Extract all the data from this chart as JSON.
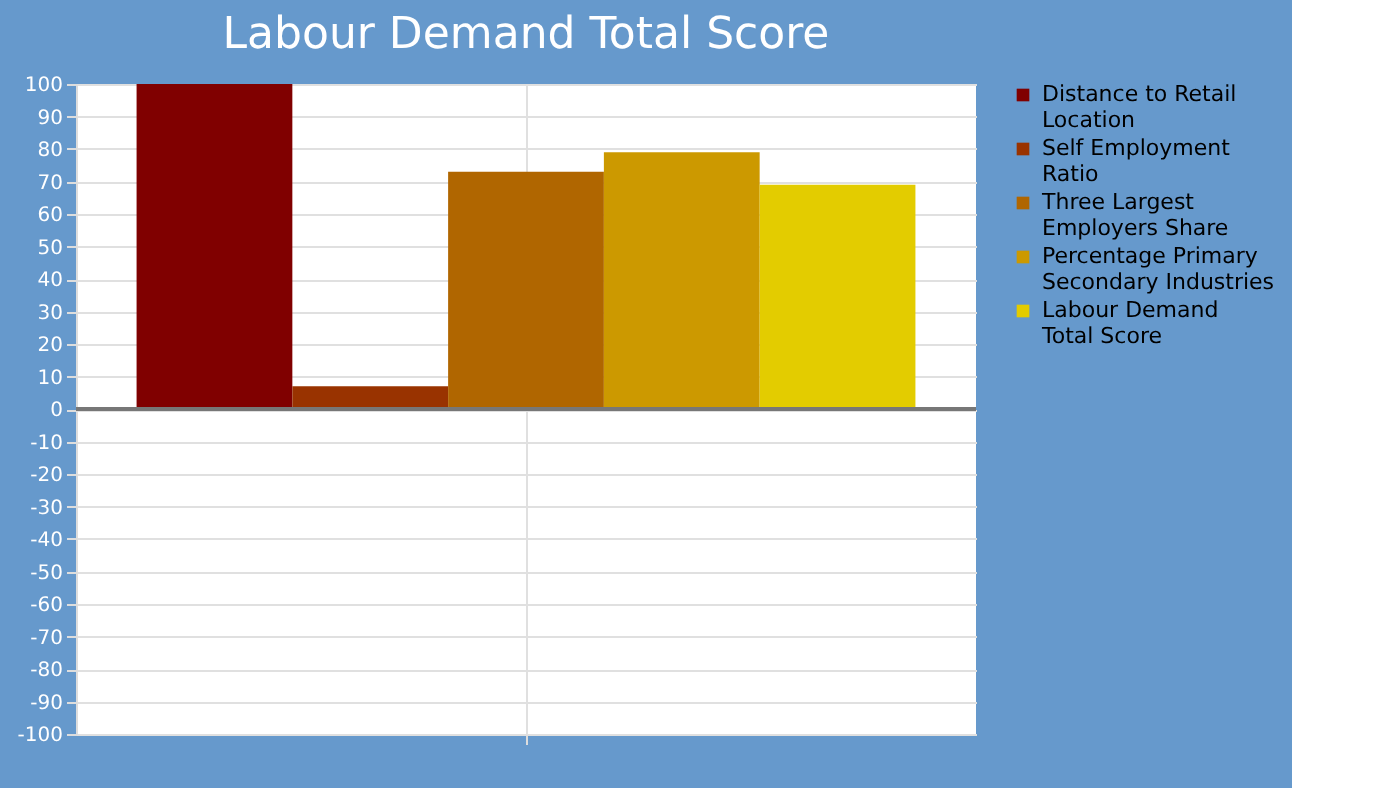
{
  "chart_data": {
    "type": "bar",
    "title": "Labour Demand Total Score",
    "categories": [
      null
    ],
    "series": [
      {
        "name": "Distance to Retail Location",
        "color": "#800000",
        "values": [
          100
        ]
      },
      {
        "name": "Self Employment Ratio",
        "color": "#993300",
        "values": [
          7
        ]
      },
      {
        "name": "Three Largest Employers Share",
        "color": "#b06600",
        "values": [
          73
        ]
      },
      {
        "name": "Percentage Primary Secondary Industries",
        "color": "#cc9900",
        "values": [
          79
        ]
      },
      {
        "name": "Labour Demand Total Score",
        "color": "#e3cc00",
        "values": [
          69
        ]
      }
    ],
    "ylim": [
      -100,
      100
    ],
    "yticks": [
      -100,
      -90,
      -80,
      -70,
      -60,
      -50,
      -40,
      -30,
      -20,
      -10,
      0,
      10,
      20,
      30,
      40,
      50,
      60,
      70,
      80,
      90,
      100
    ],
    "grid": true,
    "legend": "right"
  }
}
